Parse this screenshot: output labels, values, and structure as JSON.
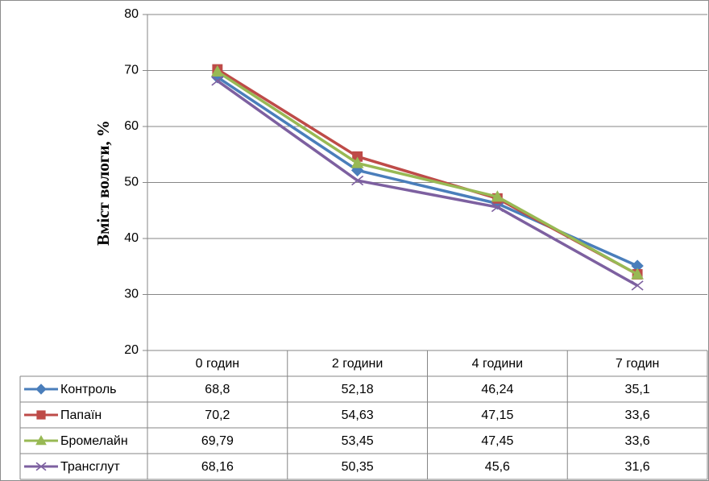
{
  "chart_data": {
    "type": "line",
    "ylabel": "Вміст вологи, %",
    "ylim": [
      20,
      80
    ],
    "yticks": [
      20,
      30,
      40,
      50,
      60,
      70,
      80
    ],
    "grid": true,
    "categories": [
      "0 годин",
      "2 години",
      "4 години",
      "7 годин"
    ],
    "data_table": true,
    "series": [
      {
        "name": "Контроль",
        "color": "#4a7ebb",
        "marker": "diamond",
        "values": [
          68.8,
          52.18,
          46.24,
          35.1
        ],
        "labels": [
          "68,8",
          "52,18",
          "46,24",
          "35,1"
        ]
      },
      {
        "name": "Папаїн",
        "color": "#be4b48",
        "marker": "square",
        "values": [
          70.2,
          54.63,
          47.15,
          33.6
        ],
        "labels": [
          "70,2",
          "54,63",
          "47,15",
          "33,6"
        ]
      },
      {
        "name": "Бромелайн",
        "color": "#98b954",
        "marker": "triangle",
        "values": [
          69.79,
          53.45,
          47.45,
          33.6
        ],
        "labels": [
          "69,79",
          "53,45",
          "47,45",
          "33,6"
        ]
      },
      {
        "name": "Трансглут",
        "color": "#7d60a0",
        "marker": "x",
        "values": [
          68.16,
          50.35,
          45.6,
          31.6
        ],
        "labels": [
          "68,16",
          "50,35",
          "45,6",
          "31,6"
        ]
      }
    ]
  }
}
